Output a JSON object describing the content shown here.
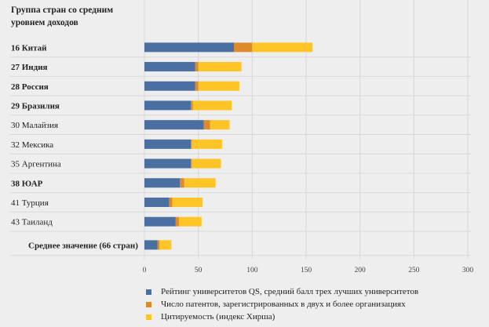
{
  "chart_data": {
    "type": "bar",
    "orientation": "horizontal",
    "stacked": true,
    "title": "Группа стран со средним уровнем доходов",
    "categories": [
      "16 Китай",
      "27 Индия",
      "28 Россия",
      "29 Бразилия",
      "30 Малайзия",
      "32  Мексика",
      "35 Аргентина",
      "38 ЮАР",
      "41 Турция",
      "43 Таиланд",
      "Среднее значение (66 стран)"
    ],
    "bold_categories": [
      true,
      true,
      true,
      true,
      false,
      false,
      false,
      true,
      false,
      false,
      true
    ],
    "series": [
      {
        "name": "Рейтинг университетов QS, средний балл трех лучших университетов",
        "color": "#4a6fa0",
        "values": [
          83,
          47,
          47,
          43,
          55,
          43,
          43,
          33,
          23,
          29,
          12
        ]
      },
      {
        "name": "Число патентов, зарегистрированных в двух и более организациях",
        "color": "#dd8a2a",
        "values": [
          17,
          3,
          3,
          2,
          6,
          1,
          1,
          4,
          3,
          3,
          2
        ]
      },
      {
        "name": " Цитируемость (индекс Хирша)",
        "color": "#ffc425",
        "values": [
          56,
          40,
          38,
          36,
          18,
          28,
          27,
          29,
          28,
          21,
          11
        ]
      }
    ],
    "xlim": [
      0,
      300
    ],
    "xticks": [
      0,
      50,
      100,
      150,
      200,
      250,
      300
    ],
    "grid": true,
    "legend_position": "bottom"
  }
}
